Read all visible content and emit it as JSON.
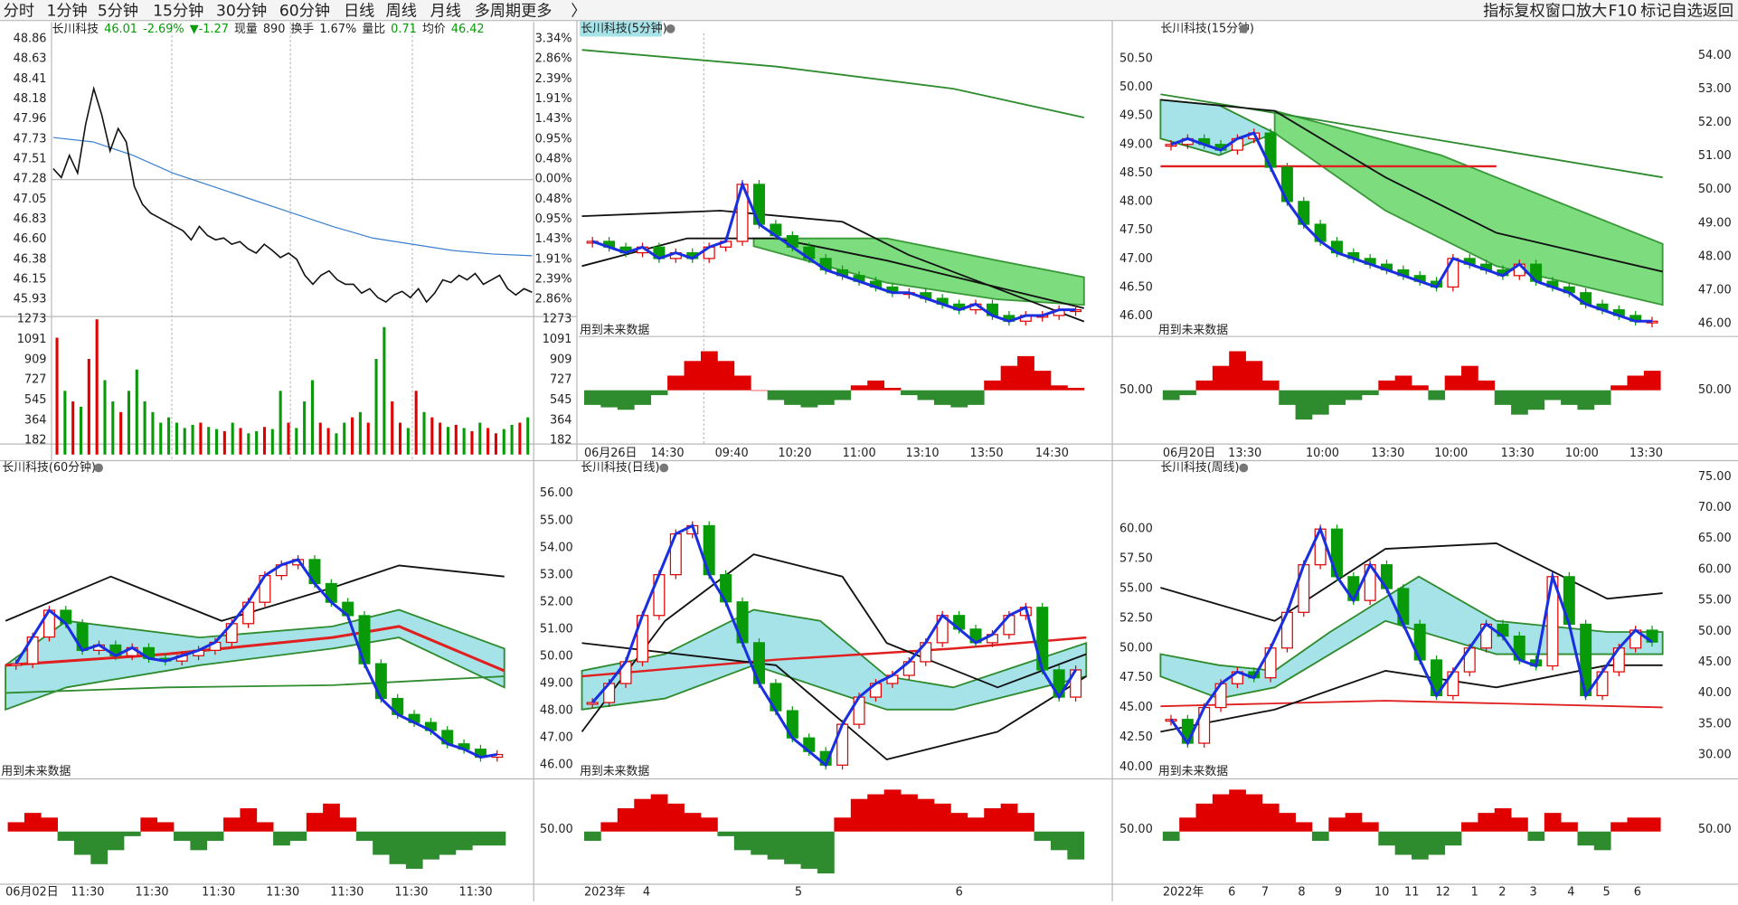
{
  "menu": {
    "left": [
      "分时",
      "1分钟",
      "5分钟",
      "15分钟",
      "30分钟",
      "60分钟",
      "日线",
      "周线",
      "月线",
      "多周期",
      "更多",
      "〉"
    ],
    "right": [
      "指标",
      "复权",
      "窗口",
      "放大",
      "F10",
      "标记",
      "自选",
      "返回"
    ]
  },
  "timeshare": {
    "header": [
      "长川科技",
      "46.01",
      "-2.69%",
      "▼-1.27",
      "现量",
      "890",
      "换手",
      "1.67%",
      "量比",
      "0.71",
      "均价",
      "46.42"
    ],
    "price_labels": [
      "48.86",
      "48.63",
      "48.41",
      "48.18",
      "47.96",
      "47.73",
      "47.51",
      "47.28",
      "47.05",
      "46.83",
      "46.60",
      "46.38",
      "46.15",
      "45.93"
    ],
    "pct_labels": [
      "3.34%",
      "2.86%",
      "2.39%",
      "1.91%",
      "1.43%",
      "0.95%",
      "0.48%",
      "0.00%",
      "0.48%",
      "0.95%",
      "1.43%",
      "1.91%",
      "2.39%",
      "2.86%"
    ],
    "volume_labels": [
      "1273",
      "1091",
      "909",
      "727",
      "545",
      "364",
      "182"
    ],
    "ylim": [
      45.93,
      48.86
    ],
    "vlim": [
      0,
      1273
    ],
    "price": [
      47.4,
      47.3,
      47.55,
      47.35,
      47.9,
      48.3,
      48.0,
      47.6,
      47.85,
      47.7,
      47.2,
      47.0,
      46.9,
      46.85,
      46.8,
      46.75,
      46.7,
      46.6,
      46.75,
      46.65,
      46.6,
      46.62,
      46.55,
      46.58,
      46.5,
      46.45,
      46.55,
      46.48,
      46.4,
      46.45,
      46.38,
      46.2,
      46.1,
      46.2,
      46.25,
      46.15,
      46.1,
      46.1,
      46.0,
      46.05,
      45.95,
      45.9,
      45.98,
      46.02,
      45.95,
      46.05,
      45.9,
      46.0,
      46.15,
      46.12,
      46.2,
      46.15,
      46.22,
      46.1,
      46.15,
      46.2,
      46.05,
      45.98,
      46.05,
      46.01
    ],
    "avg": [
      47.75,
      47.7,
      47.55,
      47.35,
      47.2,
      47.05,
      46.9,
      46.75,
      46.62,
      46.55,
      46.48,
      46.44,
      46.42
    ],
    "volume": [
      1100,
      600,
      500,
      450,
      900,
      1273,
      700,
      500,
      400,
      600,
      800,
      500,
      400,
      300,
      350,
      300,
      250,
      280,
      300,
      260,
      240,
      220,
      300,
      250,
      200,
      220,
      260,
      240,
      600,
      300,
      250,
      500,
      700,
      300,
      250,
      200,
      300,
      350,
      400,
      300,
      900,
      1200,
      500,
      300,
      250,
      600,
      400,
      350,
      300,
      260,
      280,
      250,
      220,
      300,
      250,
      200,
      240,
      280,
      300,
      350
    ]
  },
  "future_note": "用到未来数据",
  "panels": [
    {
      "title": "长川科技(5分钟)",
      "ylim": [
        45.7,
        50.95
      ],
      "macd_lim": [
        -1,
        1
      ],
      "x_labels": [
        "06月26日",
        "14:30",
        "09:40",
        "10:20",
        "11:00",
        "13:10",
        "13:50",
        "14:30"
      ],
      "closes": [
        47.3,
        47.2,
        47.1,
        47.2,
        47.0,
        47.1,
        47.0,
        47.2,
        47.3,
        48.3,
        47.6,
        47.4,
        47.2,
        47.0,
        46.8,
        46.7,
        46.6,
        46.5,
        46.4,
        46.4,
        46.3,
        46.2,
        46.1,
        46.2,
        46.0,
        45.9,
        46.0,
        46.0,
        46.1,
        46.1
      ],
      "macd": [
        -0.3,
        -0.35,
        -0.4,
        -0.3,
        -0.1,
        0.3,
        0.6,
        0.8,
        0.6,
        0.3,
        0.0,
        -0.2,
        -0.3,
        -0.35,
        -0.3,
        -0.2,
        0.1,
        0.2,
        0.05,
        -0.1,
        -0.2,
        -0.3,
        -0.35,
        -0.3,
        0.2,
        0.5,
        0.7,
        0.4,
        0.1,
        0.05
      ]
    },
    {
      "title": "长川科技(15分钟)",
      "ylim": [
        45.7,
        50.95
      ],
      "macd_lim": [
        -1,
        1
      ],
      "x_labels": [
        "06月20日",
        "13:30",
        "10:00",
        "13:30",
        "10:00",
        "13:30",
        "10:00",
        "13:30"
      ],
      "closes": [
        49.0,
        49.1,
        49.0,
        48.9,
        49.1,
        49.2,
        48.6,
        48.0,
        47.6,
        47.3,
        47.1,
        47.0,
        46.9,
        46.8,
        46.7,
        46.6,
        46.5,
        47.0,
        46.9,
        46.8,
        46.7,
        46.9,
        46.6,
        46.5,
        46.4,
        46.2,
        46.1,
        46.0,
        45.9,
        45.9
      ],
      "macd": [
        -0.2,
        -0.1,
        0.2,
        0.5,
        0.8,
        0.6,
        0.2,
        -0.3,
        -0.6,
        -0.5,
        -0.3,
        -0.2,
        -0.1,
        0.2,
        0.3,
        0.1,
        -0.2,
        0.3,
        0.5,
        0.2,
        -0.3,
        -0.5,
        -0.4,
        -0.2,
        -0.3,
        -0.4,
        -0.3,
        0.1,
        0.3,
        0.4
      ]
    },
    {
      "title": "长川科技(60分钟)",
      "ylim": [
        45.5,
        56.5
      ],
      "macd_lim": [
        -1,
        1
      ],
      "x_labels": [
        "06月02日",
        "11:30",
        "11:30",
        "11:30",
        "11:30",
        "11:30",
        "11:30",
        "11:30"
      ],
      "closes": [
        49.5,
        50.5,
        51.5,
        51.0,
        50.0,
        50.2,
        49.8,
        50.1,
        49.7,
        49.6,
        49.8,
        50.0,
        50.3,
        51.0,
        51.8,
        52.8,
        53.2,
        53.4,
        52.5,
        51.8,
        51.3,
        49.5,
        48.2,
        47.6,
        47.3,
        47.0,
        46.5,
        46.3,
        46.0,
        46.1
      ],
      "macd": [
        0.2,
        0.4,
        0.3,
        -0.2,
        -0.5,
        -0.7,
        -0.4,
        -0.1,
        0.3,
        0.2,
        -0.2,
        -0.4,
        -0.2,
        0.3,
        0.5,
        0.2,
        -0.3,
        -0.2,
        0.4,
        0.6,
        0.3,
        -0.2,
        -0.5,
        -0.7,
        -0.8,
        -0.6,
        -0.5,
        -0.4,
        -0.3,
        -0.3
      ]
    },
    {
      "title": "长川科技(日线)",
      "ylim": [
        45.8,
        56.6
      ],
      "macd_lim": [
        -1,
        1
      ],
      "x_labels": [
        "2023年",
        "4",
        "5",
        "6"
      ],
      "closes": [
        48.3,
        49.0,
        49.8,
        51.5,
        53.0,
        54.5,
        54.8,
        53.0,
        52.0,
        50.5,
        49.0,
        48.0,
        47.0,
        46.5,
        46.0,
        47.5,
        48.5,
        49.0,
        49.3,
        49.8,
        50.5,
        51.5,
        51.0,
        50.5,
        50.8,
        51.5,
        51.8,
        49.5,
        48.5,
        49.5
      ],
      "macd": [
        -0.2,
        0.2,
        0.5,
        0.7,
        0.8,
        0.6,
        0.4,
        0.3,
        -0.1,
        -0.4,
        -0.5,
        -0.6,
        -0.7,
        -0.8,
        -0.9,
        0.3,
        0.7,
        0.8,
        0.9,
        0.8,
        0.7,
        0.6,
        0.4,
        0.3,
        0.5,
        0.6,
        0.4,
        -0.2,
        -0.4,
        -0.6
      ]
    },
    {
      "title": "长川科技(周线)",
      "ylim": [
        39.7,
        64.4
      ],
      "macd_lim": [
        -1,
        1
      ],
      "x_labels": [
        "2022年",
        "6",
        "7",
        "8",
        "9",
        "10",
        "11",
        "12",
        "1",
        "2",
        "3",
        "4",
        "5",
        "6"
      ],
      "closes": [
        44.0,
        42.0,
        45.0,
        47.0,
        48.0,
        47.5,
        50.0,
        53.0,
        57.0,
        60.0,
        56.0,
        54.0,
        57.0,
        55.0,
        52.0,
        49.0,
        46.0,
        48.0,
        50.0,
        52.0,
        51.0,
        49.0,
        48.5,
        56.0,
        52.0,
        46.0,
        48.0,
        50.0,
        51.5,
        50.5
      ],
      "macd": [
        -0.2,
        0.3,
        0.6,
        0.8,
        0.9,
        0.8,
        0.6,
        0.4,
        0.2,
        -0.2,
        0.3,
        0.4,
        0.2,
        -0.3,
        -0.5,
        -0.6,
        -0.5,
        -0.3,
        0.2,
        0.4,
        0.5,
        0.3,
        -0.2,
        0.4,
        0.2,
        -0.3,
        -0.4,
        0.2,
        0.3,
        0.3
      ]
    }
  ],
  "axis_columns": [
    [
      "50.50",
      "50.00",
      "49.50",
      "49.00",
      "48.50",
      "48.00",
      "47.50",
      "47.00",
      "46.50",
      "46.00"
    ],
    [
      "54.00",
      "53.00",
      "52.00",
      "51.00",
      "50.00",
      "49.00",
      "48.00",
      "47.00",
      "46.00"
    ],
    [
      "56.00",
      "55.00",
      "54.00",
      "53.00",
      "52.00",
      "51.00",
      "50.00",
      "49.00",
      "48.00",
      "47.00",
      "46.00"
    ],
    [
      "60.00",
      "57.50",
      "55.00",
      "52.50",
      "50.00",
      "47.50",
      "45.00",
      "42.50",
      "40.00"
    ],
    [
      "75.00",
      "70.00",
      "65.00",
      "60.00",
      "55.00",
      "50.00",
      "45.00",
      "40.00",
      "35.00",
      "30.00"
    ]
  ],
  "indicator_labels": [
    "50.00",
    "50.00",
    "50.00",
    "50.00",
    "50.00"
  ]
}
